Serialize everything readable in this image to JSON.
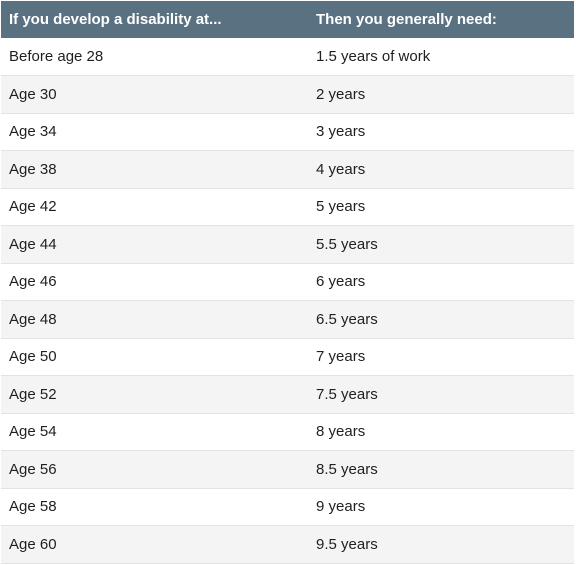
{
  "table": {
    "headers": [
      "If you develop a disability at...",
      "Then you generally need:"
    ],
    "rows": [
      [
        "Before age 28",
        "1.5 years of work"
      ],
      [
        "Age 30",
        "2 years"
      ],
      [
        "Age 34",
        "3 years"
      ],
      [
        "Age 38",
        "4 years"
      ],
      [
        "Age 42",
        "5 years"
      ],
      [
        "Age 44",
        "5.5 years"
      ],
      [
        "Age 46",
        "6 years"
      ],
      [
        "Age 48",
        "6.5 years"
      ],
      [
        "Age 50",
        "7 years"
      ],
      [
        "Age 52",
        "7.5 years"
      ],
      [
        "Age 54",
        "8 years"
      ],
      [
        "Age 56",
        "8.5 years"
      ],
      [
        "Age 58",
        "9 years"
      ],
      [
        "Age 60",
        "9.5 years"
      ]
    ]
  },
  "colors": {
    "header_bg": "#5a7181",
    "header_text": "#ffffff",
    "row_alt_bg": "#f4f4f4"
  }
}
